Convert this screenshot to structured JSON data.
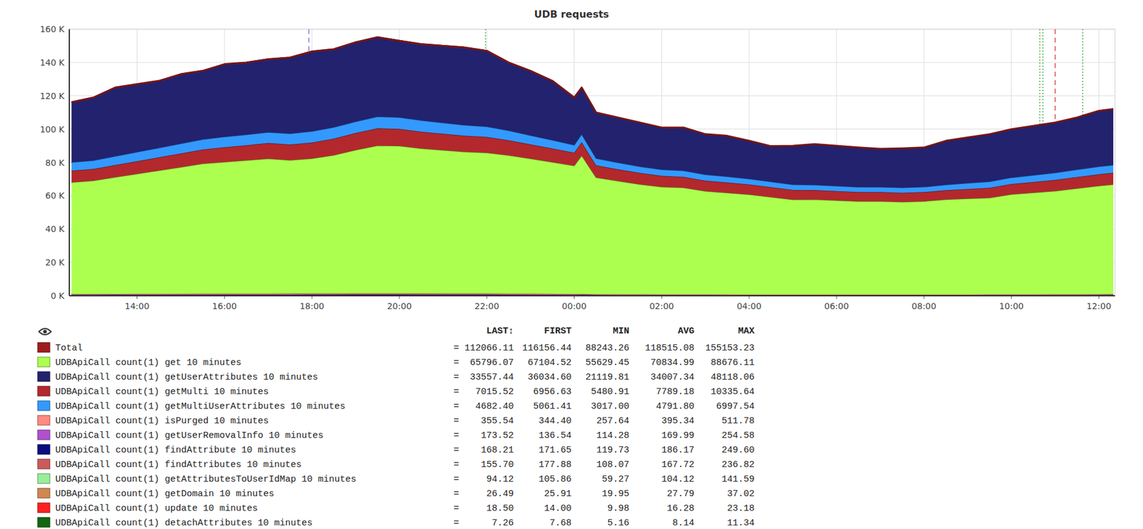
{
  "chart_data": {
    "type": "area",
    "title": "UDB requests",
    "stacked": true,
    "grid": true,
    "x": [
      12.5,
      13,
      13.5,
      14,
      14.5,
      15,
      15.5,
      16,
      16.5,
      17,
      17.5,
      18,
      18.5,
      19,
      19.5,
      20,
      20.5,
      21,
      21.5,
      22,
      22.5,
      23,
      23.5,
      24,
      24.17,
      24.5,
      25,
      25.5,
      26,
      26.5,
      27,
      27.5,
      28,
      28.5,
      29,
      29.5,
      30,
      30.5,
      31,
      31.5,
      32,
      32.5,
      33,
      33.5,
      34,
      34.5,
      35,
      35.5,
      36,
      36.33
    ],
    "xlim": [
      12.45,
      36.37
    ],
    "xticks": [
      {
        "value": 14,
        "label": "14:00"
      },
      {
        "value": 16,
        "label": "16:00"
      },
      {
        "value": 18,
        "label": "18:00"
      },
      {
        "value": 20,
        "label": "20:00"
      },
      {
        "value": 22,
        "label": "22:00"
      },
      {
        "value": 24,
        "label": "00:00"
      },
      {
        "value": 26,
        "label": "02:00"
      },
      {
        "value": 28,
        "label": "04:00"
      },
      {
        "value": 30,
        "label": "06:00"
      },
      {
        "value": 32,
        "label": "08:00"
      },
      {
        "value": 34,
        "label": "10:00"
      },
      {
        "value": 36,
        "label": "12:00"
      }
    ],
    "ylim": [
      0,
      160000
    ],
    "yticks": [
      {
        "value": 0,
        "label": "0 K"
      },
      {
        "value": 20000,
        "label": "20 K"
      },
      {
        "value": 40000,
        "label": "40 K"
      },
      {
        "value": 60000,
        "label": "60 K"
      },
      {
        "value": 80000,
        "label": "80 K"
      },
      {
        "value": 100000,
        "label": "100 K"
      },
      {
        "value": 120000,
        "label": "120 K"
      },
      {
        "value": 140000,
        "label": "140 K"
      },
      {
        "value": 160000,
        "label": "160 K"
      }
    ],
    "events": [
      {
        "x": 17.93,
        "color": "#8877dd",
        "line_style": "dashed"
      },
      {
        "x": 21.97,
        "color": "#44aa44",
        "line_style": "dotted"
      },
      {
        "x": 34.65,
        "color": "#44aa44",
        "line_style": "dotted"
      },
      {
        "x": 34.72,
        "color": "#44aa44",
        "line_style": "dotted"
      },
      {
        "x": 35.0,
        "color": "#dd4444",
        "line_style": "dashed"
      },
      {
        "x": 35.63,
        "color": "#44aa44",
        "line_style": "dotted"
      }
    ],
    "legend_columns": [
      "LAST↕",
      "FIRST",
      "MIN",
      "AVG",
      "MAX"
    ],
    "legend_separator": "=",
    "series": [
      {
        "name": "Total",
        "color": "#a01c1c",
        "type": "line",
        "stats": [
          "112066.11",
          "116156.44",
          "88243.26",
          "118515.08",
          "155153.23"
        ],
        "values": [
          116156.44,
          119000,
          125000,
          127000,
          129000,
          133000,
          135000,
          139000,
          140000,
          142000,
          143000,
          146600,
          148000,
          152100,
          155153.23,
          153000,
          151000,
          150000,
          149000,
          147000,
          140000,
          135000,
          129000,
          119000,
          125000,
          110000,
          107000,
          104000,
          101000,
          101000,
          97000,
          96000,
          93000,
          89800,
          90000,
          91000,
          90000,
          89000,
          88243.26,
          88500,
          89000,
          93000,
          95000,
          97000,
          100000,
          102000,
          104000,
          107000,
          111000,
          112066.11
        ]
      },
      {
        "name": "UDBApiCall count(1) get 10 minutes",
        "color": "#adff4f",
        "stats": [
          "65796.07",
          "67104.52",
          "55629.45",
          "70834.99",
          "88676.11"
        ],
        "values": [
          67104.52,
          68000,
          70000,
          72000,
          74000,
          76000,
          78000,
          79000,
          80000,
          81000,
          80000,
          81000,
          83000,
          86000,
          88676.11,
          88500,
          87000,
          86000,
          85000,
          84500,
          83000,
          81000,
          79000,
          77000,
          83000,
          70000,
          68000,
          66000,
          64500,
          64000,
          62000,
          61000,
          60000,
          58500,
          57000,
          57000,
          56500,
          56000,
          56000,
          55629.45,
          56000,
          57000,
          57500,
          58000,
          60000,
          61000,
          62000,
          63500,
          65000,
          65796.07
        ]
      },
      {
        "name": "UDBApiCall count(1) getUserAttributes 10 minutes",
        "color": "#22226e",
        "stats": [
          "33557.44",
          "36034.60",
          "21119.81",
          "34007.34",
          "48118.06"
        ],
        "values": [
          36034.6,
          37900,
          41300,
          40900,
          40300,
          41800,
          41300,
          43700,
          43400,
          44000,
          45800,
          48118.06,
          47100,
          47800,
          47900,
          46200,
          46000,
          46400,
          46800,
          45700,
          41000,
          38800,
          35700,
          28500,
          28100,
          27400,
          27000,
          26300,
          25100,
          25800,
          24100,
          24300,
          22600,
          21119.81,
          23000,
          24200,
          23900,
          23500,
          22800,
          23500,
          23400,
          26100,
          27200,
          28300,
          28900,
          29500,
          30100,
          31100,
          33400,
          33557.44
        ]
      },
      {
        "name": "UDBApiCall count(1) getMulti 10 minutes",
        "color": "#b3282c",
        "stats": [
          "7015.52",
          "6956.63",
          "5480.91",
          "7789.18",
          "10335.64"
        ],
        "values": [
          6956.63,
          7000,
          7300,
          7600,
          7900,
          8200,
          8500,
          8800,
          9000,
          9300,
          9400,
          9600,
          9900,
          10200,
          10335.64,
          10200,
          10000,
          9800,
          9600,
          9400,
          9000,
          8600,
          8200,
          7800,
          8000,
          7300,
          7000,
          6800,
          6600,
          6500,
          6300,
          6200,
          6000,
          5900,
          5800,
          5700,
          5600,
          5550,
          5500,
          5480.91,
          5500,
          5600,
          5800,
          6000,
          6200,
          6400,
          6600,
          6800,
          6950,
          7015.52
        ]
      },
      {
        "name": "UDBApiCall count(1) getMultiUserAttributes 10 minutes",
        "color": "#3399ff",
        "stats": [
          "4682.40",
          "5061.41",
          "3017.00",
          "4791.80",
          "6997.54"
        ],
        "values": [
          5061.41,
          5100,
          5300,
          5500,
          5700,
          5900,
          6100,
          6300,
          6400,
          6500,
          6600,
          6700,
          6800,
          6900,
          6997.54,
          6900,
          6800,
          6600,
          6400,
          6200,
          5800,
          5400,
          5000,
          4600,
          4800,
          4200,
          4000,
          3900,
          3800,
          3700,
          3600,
          3500,
          3400,
          3300,
          3200,
          3100,
          3050,
          3020,
          3017,
          3030,
          3100,
          3300,
          3500,
          3700,
          3900,
          4100,
          4300,
          4500,
          4600,
          4682.4
        ]
      },
      {
        "name": "UDBApiCall count(1) isPurged 10 minutes",
        "color": "#ff8a80",
        "stats": [
          "355.54",
          "344.40",
          "257.64",
          "395.34",
          "511.78"
        ],
        "values": [
          344.4,
          375,
          398,
          405,
          413,
          428,
          436,
          451,
          456,
          464,
          466,
          479,
          487,
          502,
          511.78,
          504,
          497,
          494,
          489,
          481,
          456,
          436,
          413,
          375,
          398,
          342,
          329,
          319,
          306,
          306,
          291,
          288,
          276,
          266,
          266,
          268,
          266,
          261,
          257.64,
          261,
          261,
          276,
          283,
          291,
          304,
          311,
          319,
          329,
          344,
          355.54
        ]
      },
      {
        "name": "UDBApiCall count(1) getUserRemovalInfo 10 minutes",
        "color": "#b050d0",
        "stats": [
          "173.52",
          "136.54",
          "114.28",
          "169.99",
          "254.58"
        ],
        "values": [
          136.54,
          178,
          191,
          195,
          199,
          208,
          212,
          220,
          223,
          227,
          229,
          236,
          240,
          248,
          254.58,
          250,
          246,
          244,
          241,
          237,
          223,
          212,
          199,
          178,
          191,
          160,
          153,
          148,
          141,
          141,
          132,
          131,
          124,
          118,
          118,
          120,
          118,
          116,
          114.28,
          116,
          116,
          124,
          128,
          132,
          139,
          143,
          148,
          153,
          162,
          173.52
        ]
      },
      {
        "name": "UDBApiCall count(1) findAttribute 10 minutes",
        "color": "#0c0c80",
        "stats": [
          "168.21",
          "171.65",
          "119.73",
          "186.17",
          "249.60"
        ],
        "values": [
          171.65,
          180,
          191,
          195,
          199,
          207,
          211,
          219,
          221,
          225,
          227,
          233,
          237,
          245,
          249.6,
          246,
          242,
          241,
          238,
          234,
          221,
          211,
          199,
          180,
          191,
          163,
          156,
          151,
          145,
          145,
          137,
          136,
          129,
          124,
          124,
          125,
          124,
          121,
          119.73,
          121,
          121,
          129,
          133,
          137,
          143,
          147,
          151,
          156,
          164,
          168.21
        ]
      },
      {
        "name": "UDBApiCall count(1) findAttributes 10 minutes",
        "color": "#cc5a5a",
        "stats": [
          "155.70",
          "177.88",
          "108.07",
          "167.72",
          "236.82"
        ],
        "values": [
          177.88,
          167,
          179,
          183,
          187,
          194,
          198,
          206,
          209,
          212,
          214,
          220,
          224,
          232,
          236.82,
          233,
          229,
          228,
          225,
          221,
          209,
          198,
          187,
          167,
          179,
          151,
          144,
          139,
          133,
          133,
          125,
          123,
          117,
          112,
          112,
          113,
          112,
          109,
          108.07,
          109,
          109,
          117,
          121,
          125,
          131,
          135,
          139,
          144,
          152,
          155.7
        ]
      },
      {
        "name": "UDBApiCall count(1) getAttributesToUserIdMap 10 minutes",
        "color": "#99ee99",
        "stats": [
          "94.12",
          "105.86",
          "59.27",
          "104.12",
          "141.59"
        ],
        "values": [
          105.86,
          97,
          105,
          107,
          110,
          115,
          117,
          122,
          124,
          126,
          127,
          131,
          134,
          139,
          141.59,
          140,
          137,
          136,
          135,
          132,
          124,
          117,
          110,
          97,
          105,
          86,
          82,
          79,
          75,
          75,
          70,
          69,
          65,
          61,
          61,
          62,
          61,
          60,
          59.27,
          60,
          60,
          65,
          67,
          70,
          74,
          76,
          79,
          82,
          87,
          94.12
        ]
      },
      {
        "name": "UDBApiCall count(1) getDomain 10 minutes",
        "color": "#d08850",
        "stats": [
          "26.49",
          "25.91",
          "19.95",
          "27.79",
          "37.02"
        ],
        "values": [
          25.91,
          27.8,
          29.4,
          29.9,
          30.4,
          31.4,
          31.9,
          32.9,
          33.3,
          33.8,
          33.9,
          34.8,
          35.3,
          36.3,
          37.02,
          36.5,
          36,
          35.8,
          35.5,
          35,
          33.3,
          31.9,
          30.4,
          27.8,
          29.4,
          25.6,
          24.8,
          24.1,
          23.2,
          23.2,
          22.2,
          22,
          21.2,
          20.5,
          20.5,
          20.7,
          20.5,
          20.2,
          19.95,
          20.2,
          20.2,
          21.2,
          21.7,
          22.2,
          23.1,
          23.6,
          24.1,
          24.8,
          25.8,
          26.49
        ]
      },
      {
        "name": "UDBApiCall count(1) update 10 minutes",
        "color": "#ff2020",
        "stats": [
          "18.50",
          "14.00",
          "9.98",
          "16.28",
          "23.18"
        ],
        "values": [
          14,
          16,
          17.2,
          17.5,
          17.9,
          18.7,
          19.1,
          19.9,
          20.1,
          20.5,
          20.7,
          21.3,
          21.7,
          22.5,
          23.18,
          22.6,
          22.2,
          22.1,
          21.8,
          21.4,
          20.1,
          19.1,
          17.9,
          16,
          17.2,
          14.3,
          13.6,
          13.1,
          12.5,
          12.5,
          11.7,
          11.6,
          10.9,
          10.4,
          10.4,
          10.5,
          10.4,
          10.1,
          9.98,
          10.1,
          10.1,
          10.9,
          11.3,
          11.7,
          12.3,
          12.7,
          13.1,
          13.6,
          14.4,
          18.5
        ]
      },
      {
        "name": "UDBApiCall count(1) detachAttributes 10 minutes",
        "color": "#116611",
        "stats": [
          "7.26",
          "7.68",
          "5.16",
          "8.14",
          "11.34"
        ],
        "values": [
          7.68,
          8,
          8.6,
          8.7,
          8.9,
          9.3,
          9.5,
          9.8,
          10,
          10.1,
          10.2,
          10.5,
          10.7,
          11.1,
          11.34,
          11.1,
          10.9,
          10.9,
          10.8,
          10.6,
          10,
          9.5,
          8.9,
          8,
          8.6,
          7.2,
          6.9,
          6.7,
          6.4,
          6.4,
          6,
          5.9,
          5.6,
          5.4,
          5.4,
          5.4,
          5.4,
          5.3,
          5.16,
          5.3,
          5.3,
          5.6,
          5.8,
          6,
          6.3,
          6.5,
          6.7,
          6.9,
          7.3,
          7.26
        ]
      }
    ]
  }
}
